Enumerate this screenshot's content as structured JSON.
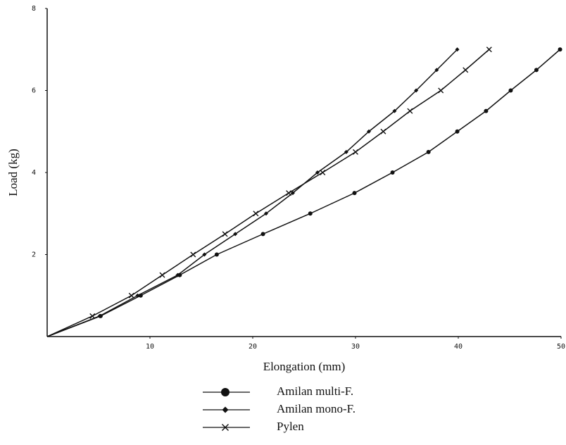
{
  "chart_data": {
    "type": "line",
    "x_label": "Elongation (mm)",
    "y_label": "Load (kg)",
    "xlim": [
      0,
      50
    ],
    "ylim": [
      0,
      8
    ],
    "xticks": [
      10,
      20,
      30,
      40,
      50
    ],
    "yticks": [
      2,
      4,
      6,
      8
    ],
    "grid": false,
    "series": [
      {
        "name": "Amilan multi-F.",
        "color": "#111111",
        "marker": "circle",
        "x": [
          0,
          5.2,
          9.1,
          12.9,
          16.5,
          21.0,
          25.6,
          29.9,
          33.6,
          37.1,
          39.9,
          42.7,
          45.1,
          47.6,
          49.9
        ],
        "values": [
          0,
          0.5,
          1.0,
          1.5,
          2.0,
          2.5,
          3.0,
          3.5,
          4.0,
          4.5,
          5.0,
          5.5,
          6.0,
          6.5,
          7.0
        ]
      },
      {
        "name": "Amilan mono-F.",
        "color": "#111111",
        "marker": "diamond",
        "x": [
          0,
          5.1,
          8.8,
          12.7,
          15.3,
          18.3,
          21.3,
          23.9,
          26.3,
          29.1,
          31.3,
          33.8,
          35.9,
          37.9,
          39.9
        ],
        "values": [
          0,
          0.5,
          1.0,
          1.5,
          2.0,
          2.5,
          3.0,
          3.5,
          4.0,
          4.5,
          5.0,
          5.5,
          6.0,
          6.5,
          7.0
        ]
      },
      {
        "name": "Pylen",
        "color": "#111111",
        "marker": "cross",
        "x": [
          0,
          4.4,
          8.2,
          11.2,
          14.2,
          17.3,
          20.3,
          23.5,
          26.8,
          30.0,
          32.7,
          35.3,
          38.3,
          40.7,
          43.0
        ],
        "values": [
          0,
          0.5,
          1.0,
          1.5,
          2.0,
          2.5,
          3.0,
          3.5,
          4.0,
          4.5,
          5.0,
          5.5,
          6.0,
          6.5,
          7.0
        ]
      }
    ]
  }
}
